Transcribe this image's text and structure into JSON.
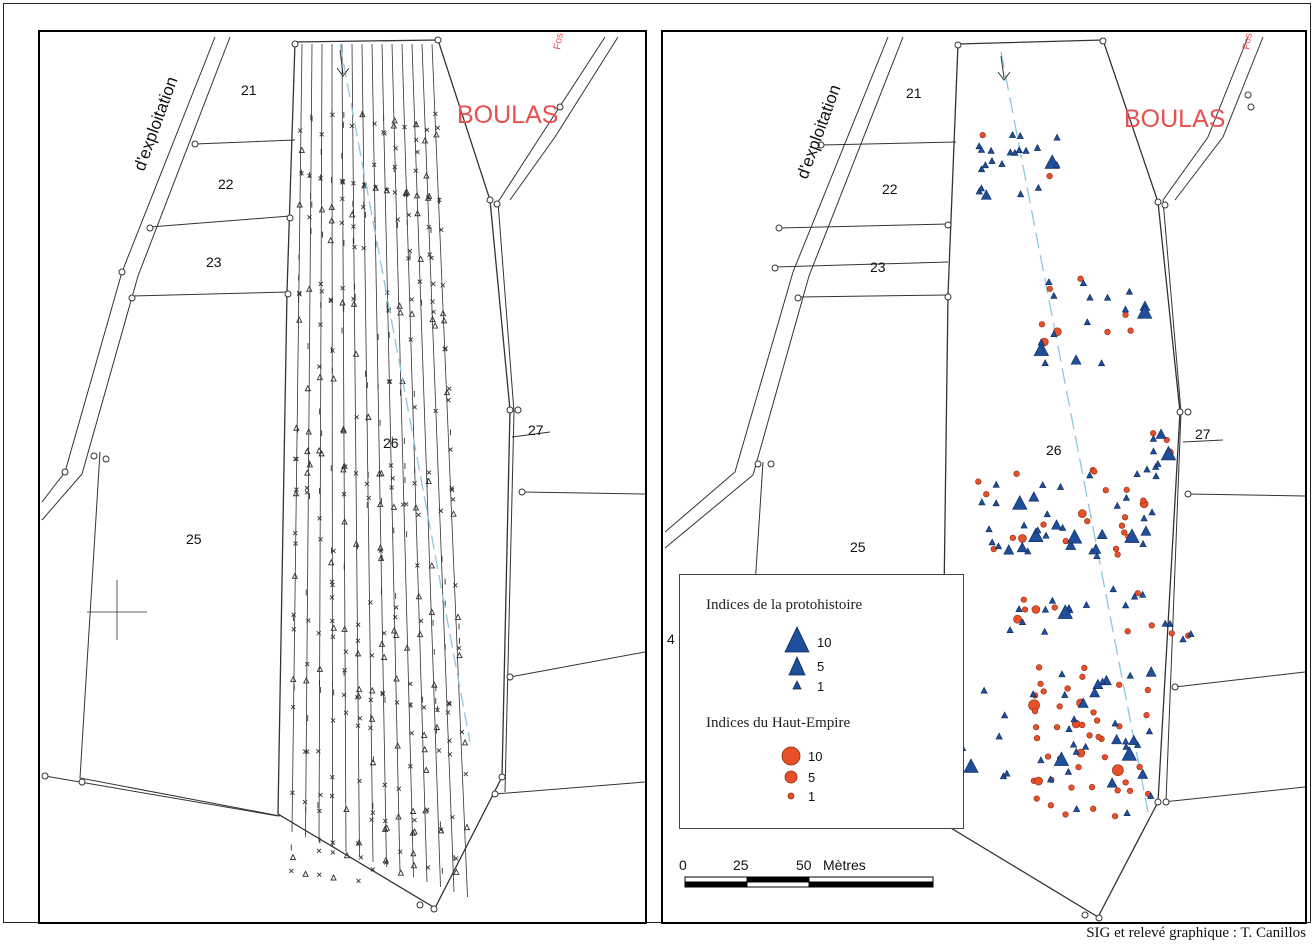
{
  "left_map": {
    "road_label": "d'exploitation",
    "place_label": "BOULAS",
    "edge_label": "Fos",
    "parcels": [
      "21",
      "22",
      "23",
      "25",
      "26",
      "27"
    ]
  },
  "right_map": {
    "road_label": "d'exploitation",
    "place_label": "BOULAS",
    "edge_label": "Fos",
    "parcels": [
      "21",
      "22",
      "23",
      "25",
      "26",
      "27",
      "4"
    ],
    "legend": {
      "protohistoire_title": "Indices de la protohistoire",
      "protohistoire_values": [
        "10",
        "5",
        "1"
      ],
      "haut_empire_title": "Indices du Haut-Empire",
      "haut_empire_values": [
        "10",
        "5",
        "1"
      ]
    },
    "scale_bar": {
      "ticks": [
        "0",
        "25",
        "50"
      ],
      "unit": "Mètres"
    }
  },
  "credit": "SIG et relevé graphique : T. Canillos",
  "colors": {
    "protohistoire": "#1f4e9a",
    "haut_empire": "#e8502a",
    "track": "#8cc8dc",
    "place_label": "#e8504f"
  }
}
